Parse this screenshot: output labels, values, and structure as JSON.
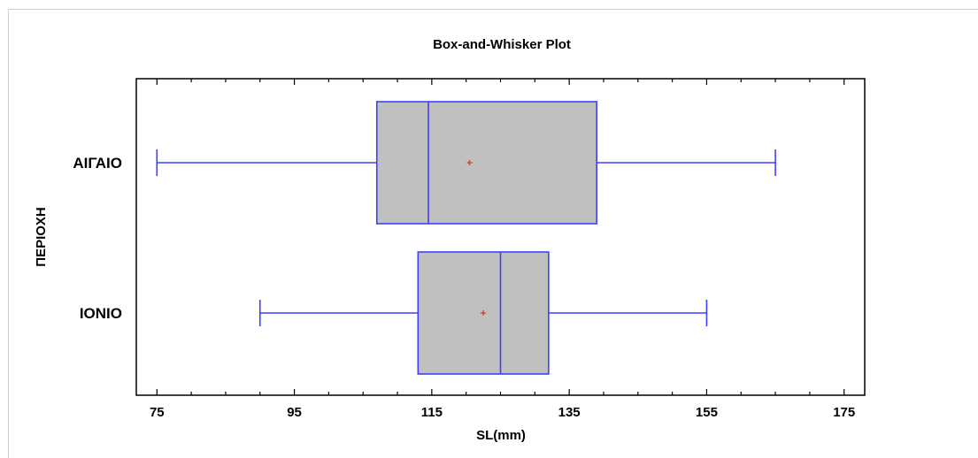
{
  "chart_data": {
    "type": "boxplot",
    "title": "Box-and-Whisker Plot",
    "xlabel": "SL(mm)",
    "ylabel": "ΠΕΡΙΟΧΗ",
    "xlim": [
      72,
      178
    ],
    "xticks": [
      75,
      95,
      115,
      135,
      155,
      175
    ],
    "minor_step": 5,
    "orientation": "horizontal",
    "grid": false,
    "categories": [
      "ΑΙΓΑΙΟ",
      "ΙΟΝΙΟ"
    ],
    "boxes": [
      {
        "category": "ΑΙΓΑΙΟ",
        "min": 75,
        "q1": 107,
        "median": 114.5,
        "mean": 120.5,
        "q3": 139,
        "max": 165
      },
      {
        "category": "ΙΟΝΙΟ",
        "min": 90,
        "q1": 113,
        "median": 125,
        "mean": 122.5,
        "q3": 132,
        "max": 155
      }
    ],
    "colors": {
      "box_fill": "#c0c0c0",
      "box_stroke": "#3f3fff",
      "mean_marker": "#c05020",
      "axis": "#000000"
    }
  }
}
